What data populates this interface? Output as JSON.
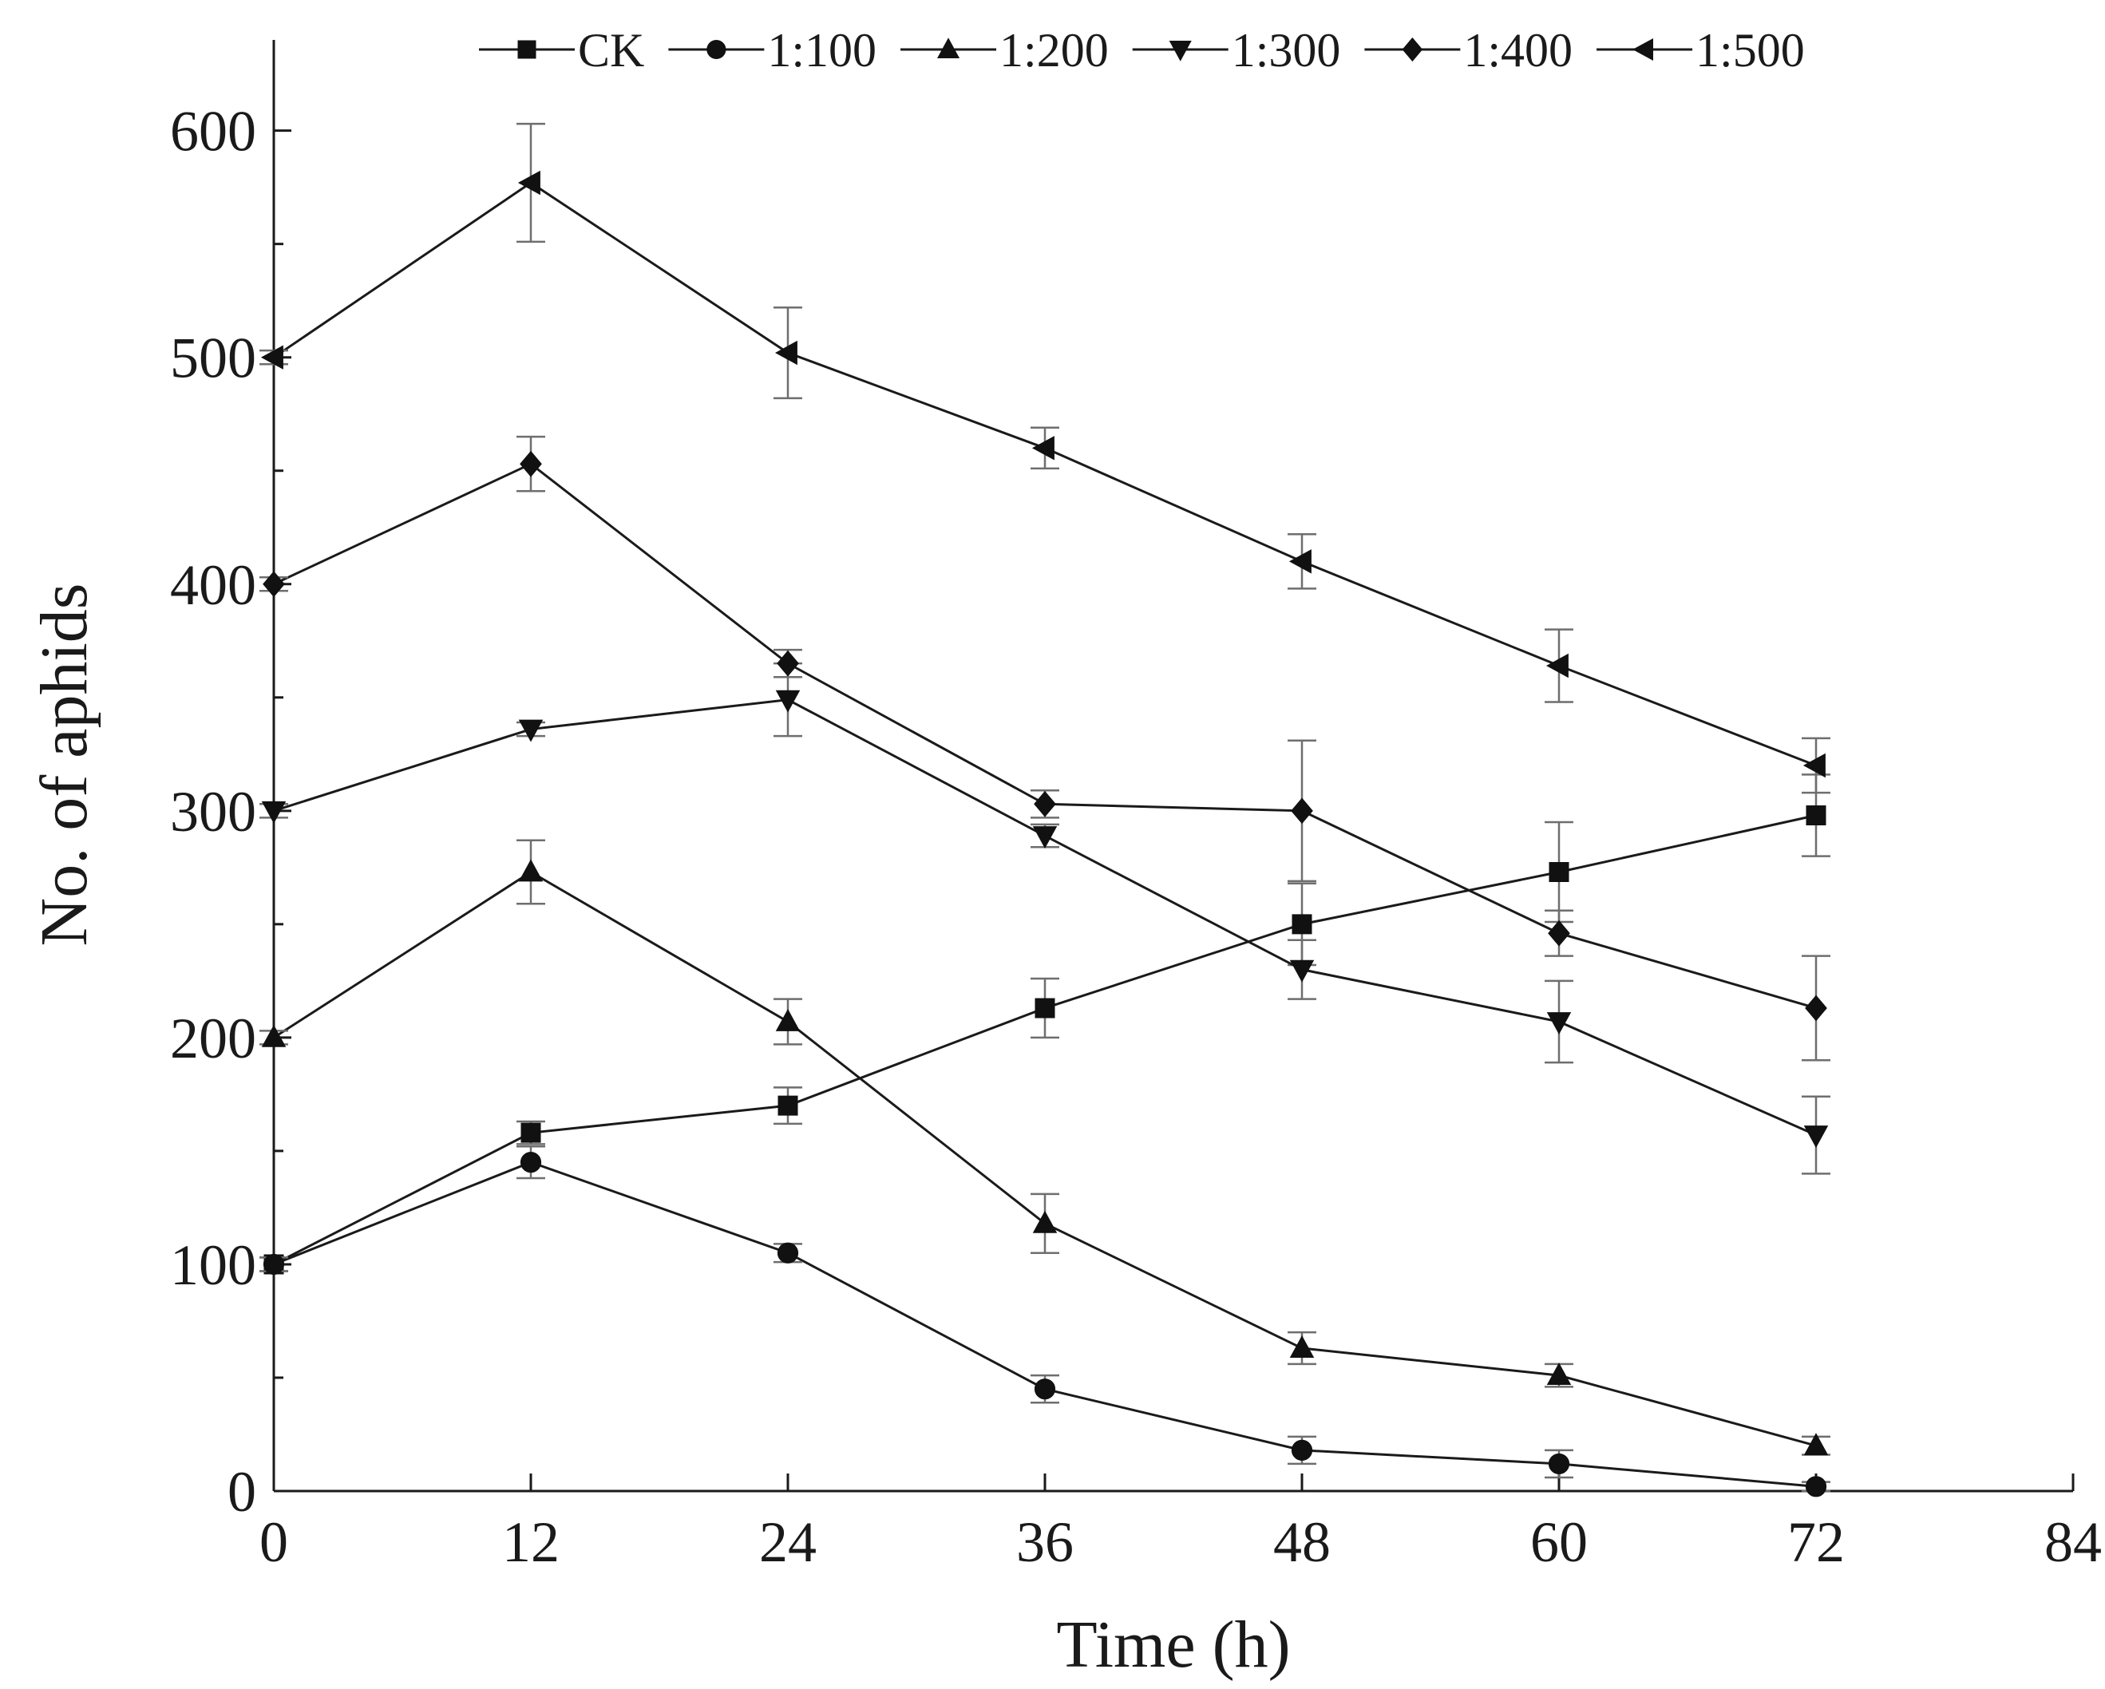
{
  "chart_data": {
    "type": "line",
    "title": "",
    "xlabel": "Time (h)",
    "ylabel": "No. of aphids",
    "xlim": [
      0,
      84
    ],
    "ylim": [
      0,
      640
    ],
    "xticks": [
      0,
      12,
      24,
      36,
      48,
      60,
      72,
      84
    ],
    "yticks": [
      0,
      100,
      200,
      300,
      400,
      500,
      600
    ],
    "y_minor_step": 50,
    "grid": false,
    "legend_position": "top",
    "x": [
      0,
      12,
      24,
      36,
      48,
      60,
      72
    ],
    "series": [
      {
        "name": "CK",
        "marker": "square",
        "values": [
          100,
          158,
          170,
          213,
          250,
          273,
          298
        ],
        "errors": [
          3,
          5,
          8,
          13,
          18,
          22,
          18
        ]
      },
      {
        "name": "1:100",
        "marker": "circle",
        "values": [
          100,
          145,
          105,
          45,
          18,
          12,
          2
        ],
        "errors": [
          3,
          7,
          4,
          6,
          6,
          6,
          2
        ]
      },
      {
        "name": "1:200",
        "marker": "triangle-up",
        "values": [
          200,
          273,
          207,
          118,
          63,
          51,
          20
        ],
        "errors": [
          3,
          14,
          10,
          13,
          7,
          5,
          4
        ]
      },
      {
        "name": "1:300",
        "marker": "triangle-down",
        "values": [
          300,
          336,
          349,
          289,
          230,
          207,
          157
        ],
        "errors": [
          3,
          3,
          16,
          5,
          13,
          18,
          17
        ]
      },
      {
        "name": "1:400",
        "marker": "diamond",
        "values": [
          400,
          453,
          365,
          303,
          300,
          246,
          213
        ],
        "errors": [
          3,
          12,
          6,
          6,
          31,
          10,
          23
        ]
      },
      {
        "name": "1:500",
        "marker": "triangle-left",
        "values": [
          500,
          577,
          502,
          460,
          410,
          364,
          320
        ],
        "errors": [
          3,
          26,
          20,
          9,
          12,
          16,
          12
        ]
      }
    ]
  }
}
